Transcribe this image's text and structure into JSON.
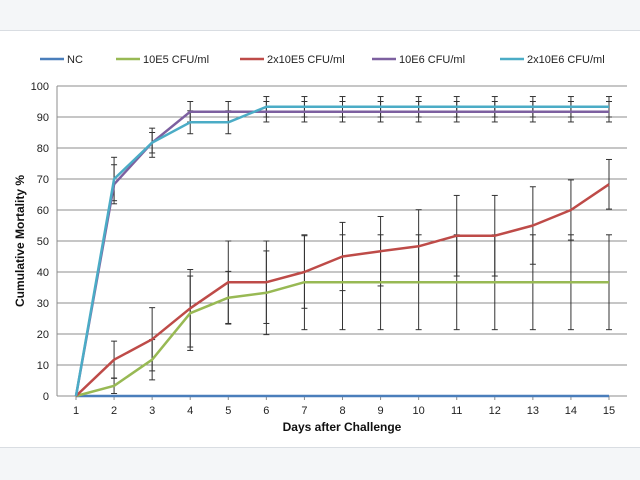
{
  "chart_data": {
    "type": "line",
    "xlabel": "Days after Challenge",
    "ylabel": "Cumulative Mortality %",
    "ylim": [
      0,
      100
    ],
    "yticks": [
      0,
      10,
      20,
      30,
      40,
      50,
      60,
      70,
      80,
      90,
      100
    ],
    "x": [
      1,
      2,
      3,
      4,
      5,
      6,
      7,
      8,
      9,
      10,
      11,
      12,
      13,
      14,
      15
    ],
    "grid": "horizontal",
    "legend_position": "top",
    "series": [
      {
        "name": "NC",
        "color": "#4a7ebb",
        "values": [
          0,
          0,
          0,
          0,
          0,
          0,
          0,
          0,
          0,
          0,
          0,
          0,
          0,
          0,
          0
        ],
        "errors": [
          0,
          0,
          0,
          0,
          0,
          0,
          0,
          0,
          0,
          0,
          0,
          0,
          0,
          0,
          0
        ]
      },
      {
        "name": "10E5 CFU/ml",
        "color": "#98b954",
        "values": [
          0,
          3.3,
          11.7,
          26.7,
          31.7,
          33.3,
          36.7,
          36.7,
          36.7,
          36.7,
          36.7,
          36.7,
          36.7,
          36.7,
          36.7
        ],
        "errors": [
          0,
          2.5,
          6.5,
          12.0,
          8.5,
          13.5,
          15.3,
          15.3,
          15.3,
          15.3,
          15.3,
          15.3,
          15.3,
          15.3,
          15.3
        ]
      },
      {
        "name": "2x10E5 CFU/ml",
        "color": "#be4b48",
        "values": [
          0,
          11.7,
          18.3,
          28.3,
          36.7,
          36.7,
          40,
          45,
          46.7,
          48.3,
          51.7,
          51.7,
          55,
          60,
          68.3
        ],
        "errors": [
          0,
          6.0,
          10.2,
          12.5,
          13.3,
          13.3,
          11.7,
          11.0,
          11.2,
          11.8,
          13.0,
          13.0,
          12.5,
          9.7,
          8.0
        ]
      },
      {
        "name": "10E6 CFU/ml",
        "color": "#7d60a0",
        "values": [
          0,
          68.3,
          81.7,
          91.7,
          91.7,
          91.7,
          91.7,
          91.7,
          91.7,
          91.7,
          91.7,
          91.7,
          91.7,
          91.7,
          91.7
        ],
        "errors": [
          0,
          6.3,
          3.3,
          3.3,
          3.3,
          3.3,
          3.3,
          3.3,
          3.3,
          3.3,
          3.3,
          3.3,
          3.3,
          3.3,
          3.3
        ]
      },
      {
        "name": "2x10E6 CFU/ml",
        "color": "#4bacc6",
        "values": [
          0,
          70,
          81.7,
          88.3,
          88.3,
          93.3,
          93.3,
          93.3,
          93.3,
          93.3,
          93.3,
          93.3,
          93.3,
          93.3,
          93.3
        ],
        "errors": [
          0,
          7.0,
          4.7,
          3.7,
          3.7,
          3.3,
          3.3,
          3.3,
          3.3,
          3.3,
          3.3,
          3.3,
          3.3,
          3.3,
          3.3
        ]
      }
    ]
  }
}
